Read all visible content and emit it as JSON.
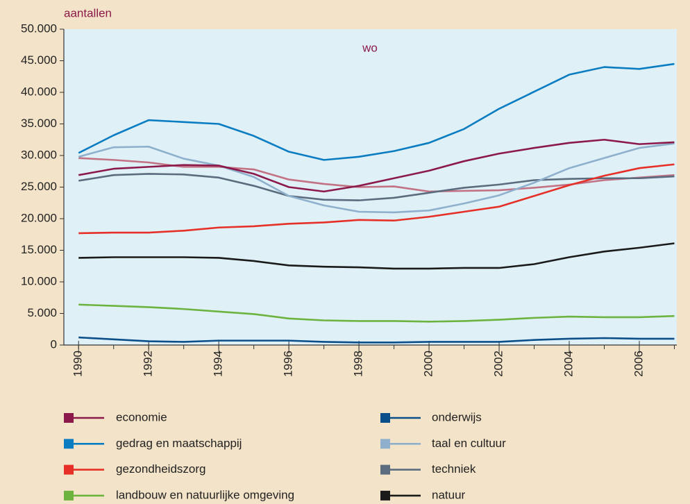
{
  "chart_data": {
    "type": "line",
    "title": "wo",
    "y_label": "aantallen",
    "x": [
      1990,
      1991,
      1992,
      1993,
      1994,
      1995,
      1996,
      1997,
      1998,
      1999,
      2000,
      2001,
      2002,
      2003,
      2004,
      2005,
      2006,
      2007
    ],
    "xlim": [
      1989.58,
      2007.07
    ],
    "xticks": [
      1990,
      1992,
      1994,
      1996,
      1998,
      2000,
      2002,
      2004,
      2006
    ],
    "ylim": [
      0,
      50000
    ],
    "yticks": [
      {
        "value": 0,
        "label": "0"
      },
      {
        "value": 5000,
        "label": "5.000"
      },
      {
        "value": 10000,
        "label": "10.000"
      },
      {
        "value": 15000,
        "label": "15.000"
      },
      {
        "value": 20000,
        "label": "20.000"
      },
      {
        "value": 25000,
        "label": "25.000"
      },
      {
        "value": 30000,
        "label": "30.000"
      },
      {
        "value": 35000,
        "label": "35.000"
      },
      {
        "value": 40000,
        "label": "40.000"
      },
      {
        "value": 45000,
        "label": "45.000"
      },
      {
        "value": 50000,
        "label": "50.000"
      }
    ],
    "grid": false,
    "legend": "bottom",
    "series": [
      {
        "name": "economie",
        "color": "#8b1a4a",
        "values": [
          26900,
          27900,
          28200,
          28500,
          28400,
          27100,
          25000,
          24300,
          25200,
          26400,
          27600,
          29100,
          30300,
          31200,
          32000,
          32500,
          31800,
          32100
        ]
      },
      {
        "name": "gedrag en maatschappij",
        "color": "#0a7cc1",
        "values": [
          30400,
          33200,
          35600,
          35300,
          35000,
          33100,
          30600,
          29300,
          29800,
          30700,
          32000,
          34200,
          37400,
          40100,
          42800,
          44000,
          43700,
          44500
        ]
      },
      {
        "name": "gezondheidszorg",
        "color": "#e63027",
        "values": [
          17700,
          17800,
          17800,
          18100,
          18600,
          18800,
          19200,
          19400,
          19800,
          19700,
          20300,
          21100,
          21900,
          23600,
          25300,
          26800,
          28000,
          28600
        ]
      },
      {
        "name": "landbouw en natuurlijke omgeving",
        "color": "#6db33f",
        "values": [
          6400,
          6200,
          6000,
          5700,
          5300,
          4900,
          4200,
          3900,
          3800,
          3800,
          3700,
          3800,
          4000,
          4300,
          4500,
          4400,
          4400,
          4600
        ]
      },
      {
        "name": "onderwijs",
        "color": "#0b4f8a",
        "values": [
          1200,
          900,
          600,
          500,
          700,
          700,
          700,
          500,
          400,
          400,
          500,
          500,
          500,
          800,
          1000,
          1100,
          1000,
          1000
        ]
      },
      {
        "name": "taal en cultuur",
        "color": "#8fb0cc",
        "values": [
          29800,
          31300,
          31400,
          29500,
          28400,
          26600,
          23600,
          22100,
          21100,
          21000,
          21300,
          22400,
          23700,
          25700,
          28000,
          29600,
          31200,
          31900
        ]
      },
      {
        "name": "techniek",
        "color": "#5a6c7e",
        "values": [
          26000,
          26900,
          27100,
          27000,
          26500,
          25200,
          23600,
          23000,
          22900,
          23300,
          24100,
          24900,
          25400,
          26100,
          26300,
          26400,
          26400,
          26700
        ]
      },
      {
        "name": "natuur",
        "color": "#1a1a1a",
        "values": [
          13800,
          13900,
          13900,
          13900,
          13800,
          13300,
          12600,
          12400,
          12300,
          12100,
          12100,
          12200,
          12200,
          12800,
          13900,
          14800,
          15400,
          16100
        ]
      },
      {
        "color": "#c27284",
        "values": [
          29600,
          29300,
          28900,
          28200,
          28200,
          27800,
          26200,
          25500,
          25000,
          25100,
          24300,
          24400,
          24500,
          24900,
          25400,
          26100,
          26500,
          26900
        ]
      }
    ]
  }
}
